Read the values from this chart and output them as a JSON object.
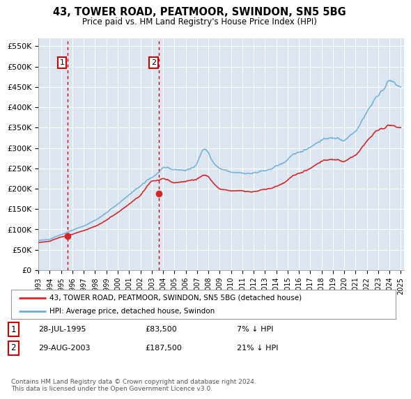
{
  "title1": "43, TOWER ROAD, PEATMOOR, SWINDON, SN5 5BG",
  "title2": "Price paid vs. HM Land Registry's House Price Index (HPI)",
  "ylim": [
    0,
    570000
  ],
  "yticks": [
    0,
    50000,
    100000,
    150000,
    200000,
    250000,
    300000,
    350000,
    400000,
    450000,
    500000,
    550000
  ],
  "ytick_labels": [
    "£0",
    "£50K",
    "£100K",
    "£150K",
    "£200K",
    "£250K",
    "£300K",
    "£350K",
    "£400K",
    "£450K",
    "£500K",
    "£550K"
  ],
  "hpi_color": "#6baed6",
  "price_color": "#d62728",
  "purchase1_date": 1995.57,
  "purchase1_price": 83500,
  "purchase2_date": 2003.66,
  "purchase2_price": 187500,
  "legend_line1": "43, TOWER ROAD, PEATMOOR, SWINDON, SN5 5BG (detached house)",
  "legend_line2": "HPI: Average price, detached house, Swindon",
  "table_row1": [
    "1",
    "28-JUL-1995",
    "£83,500",
    "7% ↓ HPI"
  ],
  "table_row2": [
    "2",
    "29-AUG-2003",
    "£187,500",
    "21% ↓ HPI"
  ],
  "footer": "Contains HM Land Registry data © Crown copyright and database right 2024.\nThis data is licensed under the Open Government Licence v3.0.",
  "plot_bg": "#dce6f1",
  "xlim_left": 1993.0,
  "xlim_right": 2025.3,
  "xtick_years": [
    1993,
    1994,
    1995,
    1996,
    1997,
    1998,
    1999,
    2000,
    2001,
    2002,
    2003,
    2004,
    2005,
    2006,
    2007,
    2008,
    2009,
    2010,
    2011,
    2012,
    2013,
    2014,
    2015,
    2016,
    2017,
    2018,
    2019,
    2020,
    2021,
    2022,
    2023,
    2024,
    2025
  ],
  "hpi_knots_x": [
    1993,
    1994,
    1995,
    1996,
    1997,
    1998,
    1999,
    2000,
    2001,
    2002,
    2003,
    2004,
    2005,
    2006,
    2007,
    2008,
    2009,
    2010,
    2011,
    2012,
    2013,
    2014,
    2015,
    2016,
    2017,
    2018,
    2019,
    2020,
    2021,
    2022,
    2023,
    2024,
    2025
  ],
  "hpi_knots_y": [
    72000,
    77000,
    88000,
    98000,
    108000,
    123000,
    140000,
    163000,
    185000,
    205000,
    228000,
    248000,
    248000,
    245000,
    252000,
    275000,
    248000,
    238000,
    240000,
    238000,
    242000,
    255000,
    270000,
    290000,
    305000,
    320000,
    325000,
    320000,
    345000,
    390000,
    430000,
    465000,
    450000
  ],
  "price_knots_x": [
    1993,
    1994,
    1995,
    1996,
    1997,
    1998,
    1999,
    2000,
    2001,
    2002,
    2003,
    2004,
    2005,
    2006,
    2007,
    2008,
    2009,
    2010,
    2011,
    2012,
    2013,
    2014,
    2015,
    2016,
    2017,
    2018,
    2019,
    2020,
    2021,
    2022,
    2023,
    2024,
    2025
  ],
  "price_knots_y": [
    67000,
    72000,
    82000,
    88000,
    97000,
    108000,
    122000,
    142000,
    162000,
    182000,
    220000,
    222000,
    215000,
    218000,
    222000,
    226000,
    198000,
    193000,
    196000,
    192000,
    197000,
    205000,
    220000,
    238000,
    252000,
    268000,
    272000,
    268000,
    285000,
    318000,
    345000,
    355000,
    350000
  ]
}
